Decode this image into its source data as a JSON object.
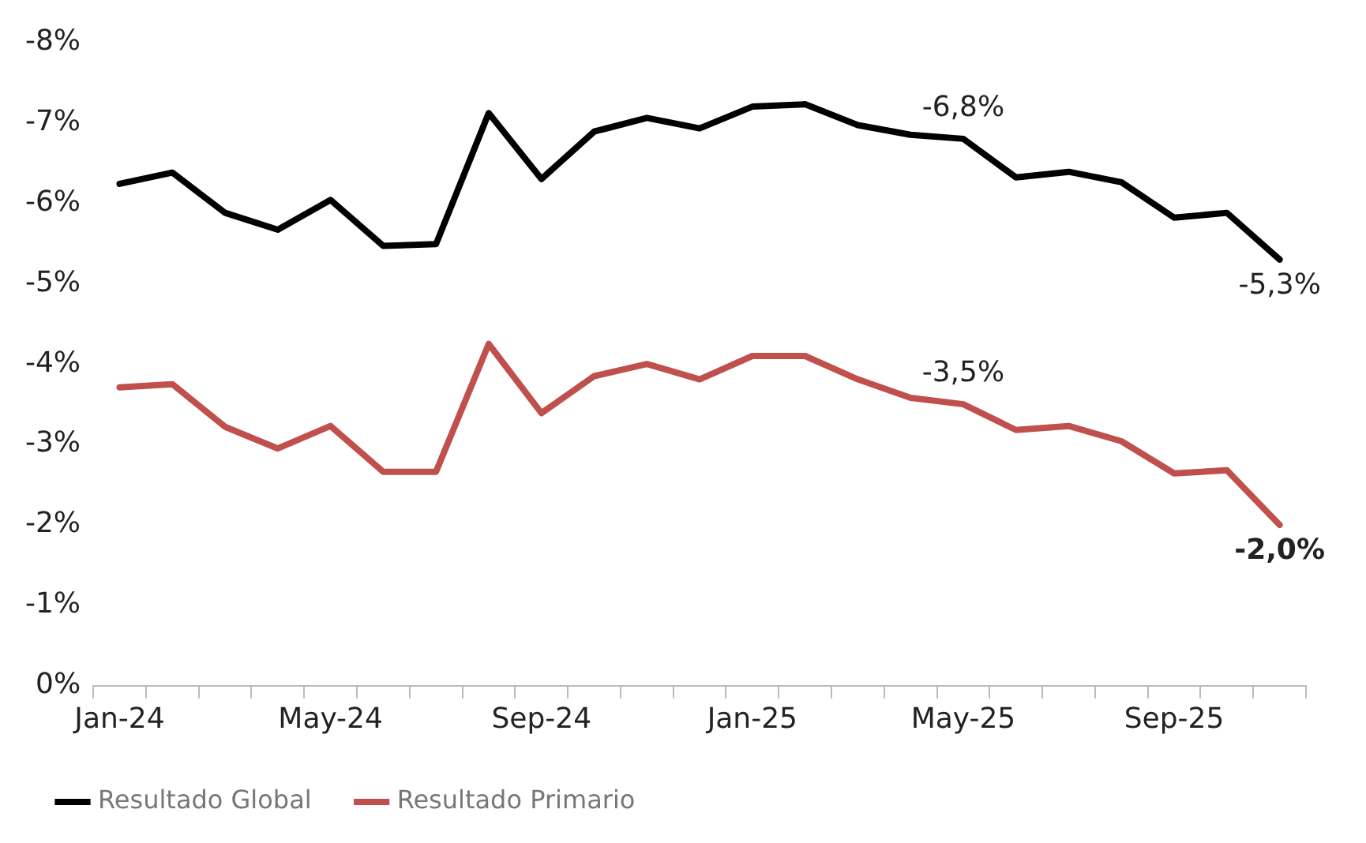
{
  "chart_data": {
    "type": "line",
    "categories": [
      "Jan-24",
      null,
      null,
      null,
      "May-24",
      null,
      null,
      null,
      "Sep-24",
      null,
      null,
      null,
      "Jan-25",
      null,
      null,
      null,
      "May-25",
      null,
      null,
      null,
      "Sep-25",
      null,
      null
    ],
    "series": [
      {
        "name": "Resultado Global",
        "color": "#000000",
        "values": [
          -6.24,
          -6.38,
          -5.88,
          -5.67,
          -6.04,
          -5.47,
          -5.49,
          -7.12,
          -6.3,
          -6.89,
          -7.06,
          -6.93,
          -7.2,
          -7.23,
          -6.97,
          -6.85,
          -6.8,
          -6.32,
          -6.39,
          -6.26,
          -5.82,
          -5.88,
          -5.3
        ],
        "value_labels": [
          null,
          null,
          null,
          null,
          null,
          null,
          null,
          null,
          null,
          null,
          null,
          null,
          null,
          null,
          null,
          null,
          "-6,8%",
          null,
          null,
          null,
          null,
          null,
          "-5,3%"
        ]
      },
      {
        "name": "Resultado Primario",
        "color": "#c0504d",
        "values": [
          -3.71,
          -3.75,
          -3.22,
          -2.95,
          -3.23,
          -2.66,
          -2.66,
          -4.25,
          -3.39,
          -3.85,
          -4.0,
          -3.81,
          -4.1,
          -4.1,
          -3.81,
          -3.58,
          -3.5,
          -3.18,
          -3.23,
          -3.04,
          -2.64,
          -2.68,
          -2.0
        ],
        "value_labels": [
          null,
          null,
          null,
          null,
          null,
          null,
          null,
          null,
          null,
          null,
          null,
          null,
          null,
          null,
          null,
          null,
          "-3,5%",
          null,
          null,
          null,
          null,
          null,
          "-2,0%"
        ]
      }
    ],
    "ylim": [
      0,
      -8
    ],
    "yticks": [
      {
        "value": 0,
        "label": "0%"
      },
      {
        "value": -1,
        "label": "-1%"
      },
      {
        "value": -2,
        "label": "-2%"
      },
      {
        "value": -3,
        "label": "-3%"
      },
      {
        "value": -4,
        "label": "-4%"
      },
      {
        "value": -5,
        "label": "-5%"
      },
      {
        "value": -6,
        "label": "-6%"
      },
      {
        "value": -7,
        "label": "-7%"
      },
      {
        "value": -8,
        "label": "-8%"
      }
    ],
    "grid": false,
    "legend": "bottom",
    "marker": "none",
    "line_style": "solid"
  }
}
